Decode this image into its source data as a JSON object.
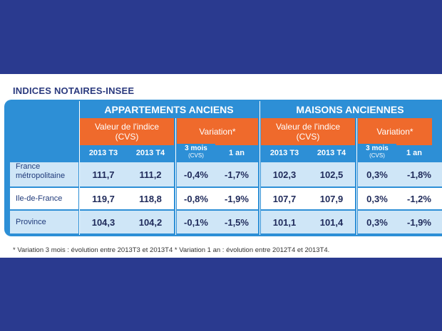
{
  "title": "INDICES NOTAIRES-INSEE",
  "groups": {
    "apartments": "APPARTEMENTS ANCIENS",
    "houses": "MAISONS ANCIENNES"
  },
  "subheaders": {
    "index_value": "Valeur de l'indice",
    "index_value_unit": "(CVS)",
    "variation": "Variation*"
  },
  "columns": {
    "t3": "2013 T3",
    "t4": "2013 T4",
    "m3": "3 mois",
    "m3_unit": "(CVS)",
    "y1": "1 an"
  },
  "rows": [
    {
      "label_line1": "France",
      "label_line2": "métropolitaine",
      "apt": [
        "111,7",
        "111,2",
        "-0,4%",
        "-1,7%"
      ],
      "house": [
        "102,3",
        "102,5",
        "0,3%",
        "-1,8%"
      ]
    },
    {
      "label_line1": "Ile-de-France",
      "label_line2": "",
      "apt": [
        "119,7",
        "118,8",
        "-0,8%",
        "-1,9%"
      ],
      "house": [
        "107,7",
        "107,9",
        "0,3%",
        "-1,2%"
      ]
    },
    {
      "label_line1": "Province",
      "label_line2": "",
      "apt": [
        "104,3",
        "104,2",
        "-0,1%",
        "-1,5%"
      ],
      "house": [
        "101,1",
        "101,4",
        "0,3%",
        "-1,9%"
      ]
    }
  ],
  "footnote": "* Variation 3 mois : évolution entre 2013T3 et 2013T4 * Variation 1 an : évolution entre 2012T4 et 2013T4.",
  "colors": {
    "background": "#2a3a8f",
    "table_blue": "#2d8fd6",
    "header_orange": "#ef6a2c",
    "alt_row": "#cfe6f7"
  }
}
